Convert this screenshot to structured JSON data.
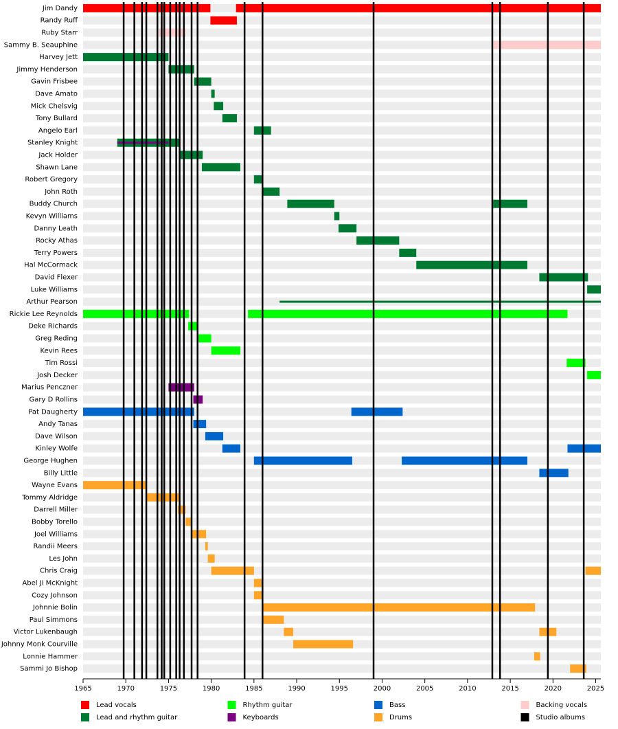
{
  "chart_data": {
    "type": "timeline",
    "xlim": [
      1965,
      2025.6
    ],
    "xticks": [
      1965,
      1970,
      1975,
      1980,
      1985,
      1990,
      1995,
      2000,
      2005,
      2010,
      2015,
      2020,
      2025
    ],
    "roles": [
      {
        "name": "Lead vocals",
        "color": "#ff0000"
      },
      {
        "name": "Lead and rhythm guitar",
        "color": "#007a33"
      },
      {
        "name": "Rhythm guitar",
        "color": "#00ff00"
      },
      {
        "name": "Keyboards",
        "color": "#7a0080"
      },
      {
        "name": "Bass",
        "color": "#0066cc"
      },
      {
        "name": "Drums",
        "color": "#ffa52a"
      },
      {
        "name": "Backing vocals",
        "color": "#ffcccc"
      }
    ],
    "albums": {
      "name": "Studio albums",
      "color": "#000000",
      "x": [
        1969.75,
        1971.0,
        1971.9,
        1972.4,
        1973.7,
        1974.2,
        1974.5,
        1975.2,
        1975.9,
        1976.3,
        1976.8,
        1977.7,
        1978.4,
        1983.9,
        1986.0,
        1999.0,
        2012.9,
        2013.8,
        2019.4,
        2023.6
      ]
    },
    "members": [
      {
        "name": "Jim Dandy",
        "bars": [
          {
            "role": 0,
            "start": 1965,
            "end": 1979.9
          },
          {
            "role": 0,
            "start": 1982.9,
            "end": 2025.6
          }
        ]
      },
      {
        "name": "Randy Ruff",
        "bars": [
          {
            "role": 0,
            "start": 1979.9,
            "end": 1983
          }
        ]
      },
      {
        "name": "Ruby Starr",
        "bars": [
          {
            "role": 6,
            "start": 1973.9,
            "end": 1977
          }
        ]
      },
      {
        "name": "Sammy B. Seauphine",
        "bars": [
          {
            "role": 6,
            "start": 2013,
            "end": 2025.6
          }
        ]
      },
      {
        "name": "Harvey Jett",
        "bars": [
          {
            "role": 1,
            "start": 1965,
            "end": 1975
          }
        ]
      },
      {
        "name": "Jimmy Henderson",
        "bars": [
          {
            "role": 1,
            "start": 1975,
            "end": 1978
          }
        ]
      },
      {
        "name": "Gavin Frisbee",
        "bars": [
          {
            "role": 1,
            "start": 1978,
            "end": 1980
          }
        ]
      },
      {
        "name": "Dave Amato",
        "bars": [
          {
            "role": 1,
            "start": 1980,
            "end": 1980.4
          }
        ]
      },
      {
        "name": "Mick Chelsvig",
        "bars": [
          {
            "role": 1,
            "start": 1980.3,
            "end": 1981.4
          }
        ]
      },
      {
        "name": "Tony Bullard",
        "bars": [
          {
            "role": 1,
            "start": 1981.3,
            "end": 1983
          }
        ]
      },
      {
        "name": "Angelo Earl",
        "bars": [
          {
            "role": 1,
            "start": 1985,
            "end": 1987
          }
        ]
      },
      {
        "name": "Stanley Knight",
        "bars": [
          {
            "role": 1,
            "start": 1969,
            "end": 1976.3
          },
          {
            "role": 3,
            "start": 1969,
            "end": 1975,
            "thin": true
          }
        ]
      },
      {
        "name": "Jack Holder",
        "bars": [
          {
            "role": 1,
            "start": 1976.3,
            "end": 1979
          }
        ]
      },
      {
        "name": "Shawn Lane",
        "bars": [
          {
            "role": 1,
            "start": 1978.9,
            "end": 1983.4
          }
        ]
      },
      {
        "name": "Robert Gregory",
        "bars": [
          {
            "role": 1,
            "start": 1985,
            "end": 1986
          }
        ]
      },
      {
        "name": "John Roth",
        "bars": [
          {
            "role": 1,
            "start": 1986,
            "end": 1988
          }
        ]
      },
      {
        "name": "Buddy Church",
        "bars": [
          {
            "role": 1,
            "start": 1988.9,
            "end": 1994.4
          },
          {
            "role": 1,
            "start": 2013,
            "end": 2017
          }
        ]
      },
      {
        "name": "Kevyn Williams",
        "bars": [
          {
            "role": 1,
            "start": 1994.4,
            "end": 1995
          }
        ]
      },
      {
        "name": "Danny Leath",
        "bars": [
          {
            "role": 1,
            "start": 1994.9,
            "end": 1997
          }
        ]
      },
      {
        "name": "Rocky Athas",
        "bars": [
          {
            "role": 1,
            "start": 1997,
            "end": 2002
          }
        ]
      },
      {
        "name": "Terry Powers",
        "bars": [
          {
            "role": 1,
            "start": 2002,
            "end": 2004
          }
        ]
      },
      {
        "name": "Hal McCormack",
        "bars": [
          {
            "role": 1,
            "start": 2004,
            "end": 2017
          }
        ]
      },
      {
        "name": "David Flexer",
        "bars": [
          {
            "role": 1,
            "start": 2018.4,
            "end": 2024.1
          }
        ]
      },
      {
        "name": "Luke Williams",
        "bars": [
          {
            "role": 1,
            "start": 2024,
            "end": 2025.6
          }
        ]
      },
      {
        "name": "Arthur Pearson",
        "bars": [
          {
            "role": 1,
            "start": 1988,
            "end": 2025.6,
            "thin": true
          }
        ]
      },
      {
        "name": "Rickie Lee Reynolds",
        "bars": [
          {
            "role": 2,
            "start": 1965,
            "end": 1977.4
          },
          {
            "role": 2,
            "start": 1984.3,
            "end": 2021.7
          }
        ]
      },
      {
        "name": "Deke Richards",
        "bars": [
          {
            "role": 2,
            "start": 1977.3,
            "end": 1978.4
          }
        ]
      },
      {
        "name": "Greg Reding",
        "bars": [
          {
            "role": 2,
            "start": 1978.4,
            "end": 1980
          }
        ]
      },
      {
        "name": "Kevin Rees",
        "bars": [
          {
            "role": 2,
            "start": 1980,
            "end": 1983.4
          }
        ]
      },
      {
        "name": "Tim Rossi",
        "bars": [
          {
            "role": 2,
            "start": 2021.6,
            "end": 2023.8
          }
        ]
      },
      {
        "name": "Josh Decker",
        "bars": [
          {
            "role": 2,
            "start": 2024,
            "end": 2025.6
          }
        ]
      },
      {
        "name": "Marius Penczner",
        "bars": [
          {
            "role": 3,
            "start": 1975,
            "end": 1978
          }
        ]
      },
      {
        "name": "Gary D Rollins",
        "bars": [
          {
            "role": 3,
            "start": 1977.9,
            "end": 1979
          }
        ]
      },
      {
        "name": "Pat Daugherty",
        "bars": [
          {
            "role": 4,
            "start": 1965,
            "end": 1978
          },
          {
            "role": 4,
            "start": 1996.4,
            "end": 2002.4
          }
        ]
      },
      {
        "name": "Andy Tanas",
        "bars": [
          {
            "role": 4,
            "start": 1977.9,
            "end": 1979.4
          }
        ]
      },
      {
        "name": "Dave Wilson",
        "bars": [
          {
            "role": 4,
            "start": 1979.3,
            "end": 1981.4
          }
        ]
      },
      {
        "name": "Kinley Wolfe",
        "bars": [
          {
            "role": 4,
            "start": 1981.3,
            "end": 1983.4
          },
          {
            "role": 4,
            "start": 2021.7,
            "end": 2025.6
          }
        ]
      },
      {
        "name": "George Hughen",
        "bars": [
          {
            "role": 4,
            "start": 1985,
            "end": 1996.5
          },
          {
            "role": 4,
            "start": 2002.3,
            "end": 2017
          }
        ]
      },
      {
        "name": "Billy Little",
        "bars": [
          {
            "role": 4,
            "start": 2018.4,
            "end": 2021.8
          }
        ]
      },
      {
        "name": "Wayne Evans",
        "bars": [
          {
            "role": 5,
            "start": 1965,
            "end": 1972.4
          }
        ]
      },
      {
        "name": "Tommy Aldridge",
        "bars": [
          {
            "role": 5,
            "start": 1972.4,
            "end": 1976.2
          }
        ]
      },
      {
        "name": "Darrell Miller",
        "bars": [
          {
            "role": 5,
            "start": 1976.1,
            "end": 1977
          }
        ]
      },
      {
        "name": "Bobby Torello",
        "bars": [
          {
            "role": 5,
            "start": 1977,
            "end": 1977.6
          }
        ]
      },
      {
        "name": "Joel Williams",
        "bars": [
          {
            "role": 5,
            "start": 1977.6,
            "end": 1979.4
          }
        ]
      },
      {
        "name": "Randii Meers",
        "bars": [
          {
            "role": 5,
            "start": 1979.3,
            "end": 1979.6
          }
        ]
      },
      {
        "name": "Les John",
        "bars": [
          {
            "role": 5,
            "start": 1979.6,
            "end": 1980.4
          }
        ]
      },
      {
        "name": "Chris Craig",
        "bars": [
          {
            "role": 5,
            "start": 1980,
            "end": 1985
          },
          {
            "role": 5,
            "start": 2023.8,
            "end": 2025.6
          }
        ]
      },
      {
        "name": "Abel Ji McKnight",
        "bars": [
          {
            "role": 5,
            "start": 1985,
            "end": 1986
          }
        ]
      },
      {
        "name": "Cozy Johnson",
        "bars": [
          {
            "role": 5,
            "start": 1985,
            "end": 1986
          }
        ]
      },
      {
        "name": "Johnnie Bolin",
        "bars": [
          {
            "role": 5,
            "start": 1986,
            "end": 2017.9
          }
        ]
      },
      {
        "name": "Paul Simmons",
        "bars": [
          {
            "role": 5,
            "start": 1986,
            "end": 1988.5
          }
        ]
      },
      {
        "name": "Victor Lukenbaugh",
        "bars": [
          {
            "role": 5,
            "start": 1988.5,
            "end": 1989.6
          },
          {
            "role": 5,
            "start": 2018.4,
            "end": 2020.4
          }
        ]
      },
      {
        "name": "Johnny Monk Courville",
        "bars": [
          {
            "role": 5,
            "start": 1989.6,
            "end": 1996.6
          }
        ]
      },
      {
        "name": "Lonnie Hammer",
        "bars": [
          {
            "role": 5,
            "start": 2017.8,
            "end": 2018.5
          }
        ]
      },
      {
        "name": "Sammi Jo Bishop",
        "bars": [
          {
            "role": 5,
            "start": 2022,
            "end": 2023.9
          }
        ]
      }
    ]
  }
}
